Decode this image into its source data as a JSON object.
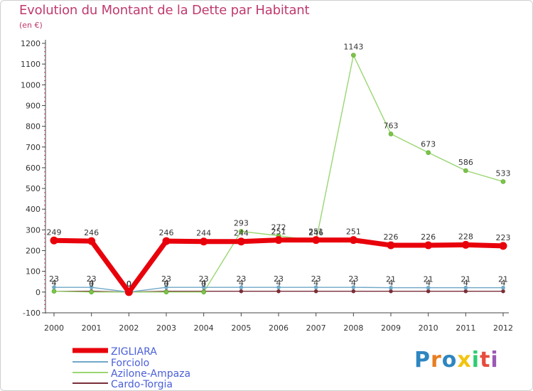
{
  "header": {
    "title": "Evolution du Montant de la Dette par Habitant",
    "unit": "(en €)"
  },
  "logo": {
    "text": "Proxiti",
    "letter_colors": [
      "#2e86c1",
      "#e67e22",
      "#2e86c1",
      "#f1c40f",
      "#2ecc71",
      "#e74c3c",
      "#9b59b6"
    ]
  },
  "chart_data": {
    "type": "line",
    "title": "Evolution du Montant de la Dette par Habitant",
    "subtitle": "(en €)",
    "xlabel": "",
    "ylabel": "",
    "x": [
      "2000",
      "2001",
      "2002",
      "2003",
      "2004",
      "2005",
      "2006",
      "2007",
      "2008",
      "2009",
      "2010",
      "2011",
      "2012"
    ],
    "ylim": [
      -100,
      1200
    ],
    "yticks": [
      -100,
      0,
      100,
      200,
      300,
      400,
      500,
      600,
      700,
      800,
      900,
      1000,
      1100,
      1200
    ],
    "grid": false,
    "legend_position": "bottom-left",
    "series": [
      {
        "name": "ZIGLIARA",
        "color": "#e8000b",
        "values": [
          249,
          246,
          0,
          246,
          244,
          244,
          251,
          251,
          251,
          226,
          226,
          228,
          223
        ],
        "labels": [
          "249",
          "246",
          "0",
          "246",
          "244",
          "244",
          "251",
          "251",
          "251",
          "226",
          "226",
          "228",
          "223"
        ]
      },
      {
        "name": "Forciolo",
        "color": "#6fa8c8",
        "values": [
          23,
          23,
          0,
          23,
          23,
          23,
          23,
          23,
          23,
          21,
          21,
          21,
          21
        ],
        "labels": [
          "23",
          "23",
          "0",
          "23",
          "23",
          "23",
          "23",
          "23",
          "23",
          "21",
          "21",
          "21",
          "21"
        ]
      },
      {
        "name": "Azilone-Ampaza",
        "color": "#9ad672",
        "values": [
          4,
          0,
          0,
          0,
          0,
          293,
          272,
          246,
          1143,
          763,
          673,
          586,
          533
        ],
        "labels": [
          "4",
          "0",
          "0",
          "0",
          "0",
          "293",
          "272",
          "246",
          "1143",
          "763",
          "673",
          "586",
          "533"
        ]
      },
      {
        "name": "Cardo-Torgia",
        "color": "#7a2e38",
        "values": [
          4,
          4,
          0,
          4,
          4,
          4,
          4,
          4,
          4,
          4,
          4,
          4,
          4
        ],
        "labels": [
          "4",
          "4",
          "0",
          "4",
          "4",
          "4",
          "4",
          "4",
          "4",
          "4",
          "4",
          "4",
          "4"
        ]
      }
    ]
  }
}
